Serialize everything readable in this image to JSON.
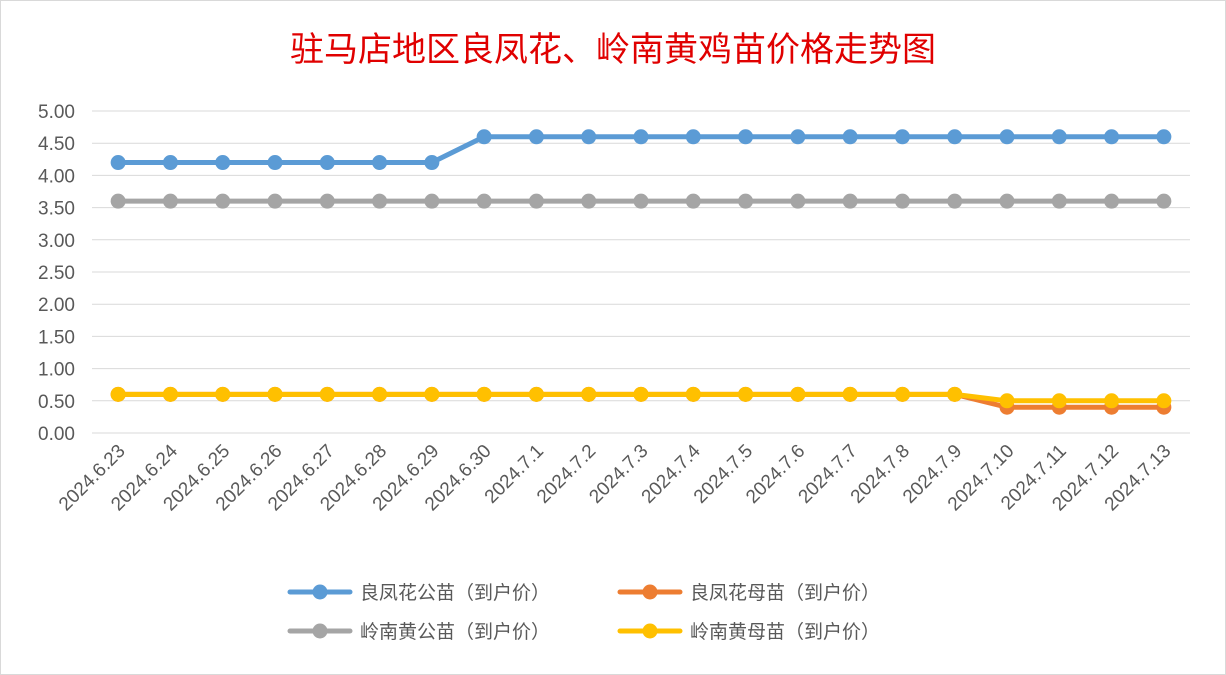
{
  "chart_data": {
    "type": "line",
    "title": "驻马店地区良凤花、岭南黄鸡苗价格走势图",
    "xlabel": "",
    "ylabel": "",
    "ylim": [
      0,
      5
    ],
    "yticks": [
      "0.00",
      "0.50",
      "1.00",
      "1.50",
      "2.00",
      "2.50",
      "3.00",
      "3.50",
      "4.00",
      "4.50",
      "5.00"
    ],
    "grid": true,
    "legend_position": "bottom",
    "categories": [
      "2024.6.23",
      "2024.6.24",
      "2024.6.25",
      "2024.6.26",
      "2024.6.27",
      "2024.6.28",
      "2024.6.29",
      "2024.6.30",
      "2024.7.1",
      "2024.7.2",
      "2024.7.3",
      "2024.7.4",
      "2024.7.5",
      "2024.7.6",
      "2024.7.7",
      "2024.7.8",
      "2024.7.9",
      "2024.7.10",
      "2024.7.11",
      "2024.7.12",
      "2024.7.13"
    ],
    "series": [
      {
        "name": "良凤花公苗（到户价）",
        "color": "#5b9bd5",
        "values": [
          4.2,
          4.2,
          4.2,
          4.2,
          4.2,
          4.2,
          4.2,
          4.6,
          4.6,
          4.6,
          4.6,
          4.6,
          4.6,
          4.6,
          4.6,
          4.6,
          4.6,
          4.6,
          4.6,
          4.6,
          4.6
        ]
      },
      {
        "name": "良凤花母苗（到户价）",
        "color": "#ed7d31",
        "values": [
          0.6,
          0.6,
          0.6,
          0.6,
          0.6,
          0.6,
          0.6,
          0.6,
          0.6,
          0.6,
          0.6,
          0.6,
          0.6,
          0.6,
          0.6,
          0.6,
          0.6,
          0.4,
          0.4,
          0.4,
          0.4
        ]
      },
      {
        "name": "岭南黄公苗（到户价）",
        "color": "#a5a5a5",
        "values": [
          3.6,
          3.6,
          3.6,
          3.6,
          3.6,
          3.6,
          3.6,
          3.6,
          3.6,
          3.6,
          3.6,
          3.6,
          3.6,
          3.6,
          3.6,
          3.6,
          3.6,
          3.6,
          3.6,
          3.6,
          3.6
        ]
      },
      {
        "name": "岭南黄母苗（到户价）",
        "color": "#ffc000",
        "values": [
          0.6,
          0.6,
          0.6,
          0.6,
          0.6,
          0.6,
          0.6,
          0.6,
          0.6,
          0.6,
          0.6,
          0.6,
          0.6,
          0.6,
          0.6,
          0.6,
          0.6,
          0.5,
          0.5,
          0.5,
          0.5
        ]
      }
    ]
  }
}
